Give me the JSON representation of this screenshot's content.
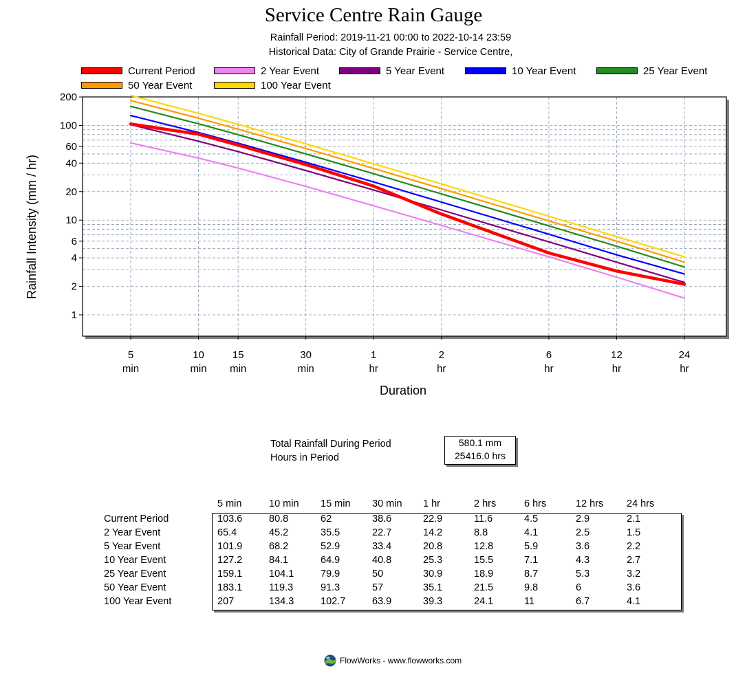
{
  "header": {
    "title": "Service Centre Rain Gauge",
    "period_line": "Rainfall Period: 2019-11-21 00:00  to  2022-10-14 23:59",
    "historical_line": "Historical Data: City of Grande Prairie - Service Centre,"
  },
  "legend": [
    {
      "label": "Current Period",
      "color": "#ff0000"
    },
    {
      "label": "2 Year Event",
      "color": "#ee82ee"
    },
    {
      "label": "5 Year Event",
      "color": "#800080"
    },
    {
      "label": "10 Year Event",
      "color": "#0000ff"
    },
    {
      "label": "25 Year Event",
      "color": "#228b22"
    },
    {
      "label": "50 Year Event",
      "color": "#ff9900"
    },
    {
      "label": "100 Year Event",
      "color": "#ffd700"
    }
  ],
  "chart_data": {
    "type": "line",
    "title": "Service Centre Rain Gauge",
    "xlabel": "Duration",
    "ylabel": "Rainfall Intensity (mm / hr)",
    "x_scale": "log",
    "y_scale": "log",
    "x_minutes": [
      5,
      10,
      15,
      30,
      60,
      120,
      360,
      720,
      1440
    ],
    "x_tick_labels": [
      [
        "5",
        "min"
      ],
      [
        "10",
        "min"
      ],
      [
        "15",
        "min"
      ],
      [
        "30",
        "min"
      ],
      [
        "1",
        "hr"
      ],
      [
        "2",
        "hr"
      ],
      [
        "6",
        "hr"
      ],
      [
        "12",
        "hr"
      ],
      [
        "24",
        "hr"
      ]
    ],
    "y_ticks": [
      1,
      2,
      4,
      6,
      10,
      20,
      40,
      60,
      100,
      200
    ],
    "ylim": [
      0.5,
      200
    ],
    "legend_position": "top",
    "series": [
      {
        "name": "Current Period",
        "color": "#ff0000",
        "values": [
          103.6,
          80.8,
          62,
          38.6,
          22.9,
          11.6,
          4.5,
          2.9,
          2.1
        ]
      },
      {
        "name": "2 Year Event",
        "color": "#ee82ee",
        "values": [
          65.4,
          45.2,
          35.5,
          22.7,
          14.2,
          8.8,
          4.1,
          2.5,
          1.5
        ]
      },
      {
        "name": "5 Year Event",
        "color": "#800080",
        "values": [
          101.9,
          68.2,
          52.9,
          33.4,
          20.8,
          12.8,
          5.9,
          3.6,
          2.2
        ]
      },
      {
        "name": "10 Year Event",
        "color": "#0000ff",
        "values": [
          127.2,
          84.1,
          64.9,
          40.8,
          25.3,
          15.5,
          7.1,
          4.3,
          2.7
        ]
      },
      {
        "name": "25 Year Event",
        "color": "#228b22",
        "values": [
          159.1,
          104.1,
          79.9,
          50,
          30.9,
          18.9,
          8.7,
          5.3,
          3.2
        ]
      },
      {
        "name": "50 Year Event",
        "color": "#ff9900",
        "values": [
          183.1,
          119.3,
          91.3,
          57,
          35.1,
          21.5,
          9.8,
          6,
          3.6
        ]
      },
      {
        "name": "100 Year Event",
        "color": "#ffd700",
        "values": [
          207,
          134.3,
          102.7,
          63.9,
          39.3,
          24.1,
          11,
          6.7,
          4.1
        ]
      }
    ]
  },
  "totals": {
    "total_label": "Total Rainfall During Period",
    "hours_label": "Hours in Period",
    "total_value": "580.1 mm",
    "hours_value": "25416.0 hrs"
  },
  "table": {
    "columns": [
      "5 min",
      "10 min",
      "15 min",
      "30 min",
      "1 hr",
      "2 hrs",
      "6 hrs",
      "12 hrs",
      "24 hrs"
    ],
    "rows": [
      {
        "label": "Current Period",
        "values": [
          "103.6",
          "80.8",
          "62",
          "38.6",
          "22.9",
          "11.6",
          "4.5",
          "2.9",
          "2.1"
        ]
      },
      {
        "label": "2 Year Event",
        "values": [
          "65.4",
          "45.2",
          "35.5",
          "22.7",
          "14.2",
          "8.8",
          "4.1",
          "2.5",
          "1.5"
        ]
      },
      {
        "label": "5 Year Event",
        "values": [
          "101.9",
          "68.2",
          "52.9",
          "33.4",
          "20.8",
          "12.8",
          "5.9",
          "3.6",
          "2.2"
        ]
      },
      {
        "label": "10 Year Event",
        "values": [
          "127.2",
          "84.1",
          "64.9",
          "40.8",
          "25.3",
          "15.5",
          "7.1",
          "4.3",
          "2.7"
        ]
      },
      {
        "label": "25 Year Event",
        "values": [
          "159.1",
          "104.1",
          "79.9",
          "50",
          "30.9",
          "18.9",
          "8.7",
          "5.3",
          "3.2"
        ]
      },
      {
        "label": "50 Year Event",
        "values": [
          "183.1",
          "119.3",
          "91.3",
          "57",
          "35.1",
          "21.5",
          "9.8",
          "6",
          "3.6"
        ]
      },
      {
        "label": "100 Year Event",
        "values": [
          "207",
          "134.3",
          "102.7",
          "63.9",
          "39.3",
          "24.1",
          "11",
          "6.7",
          "4.1"
        ]
      }
    ]
  },
  "footer": {
    "text": "FlowWorks - www.flowworks.com",
    "logo_icon": "flowworks-globe-icon"
  }
}
